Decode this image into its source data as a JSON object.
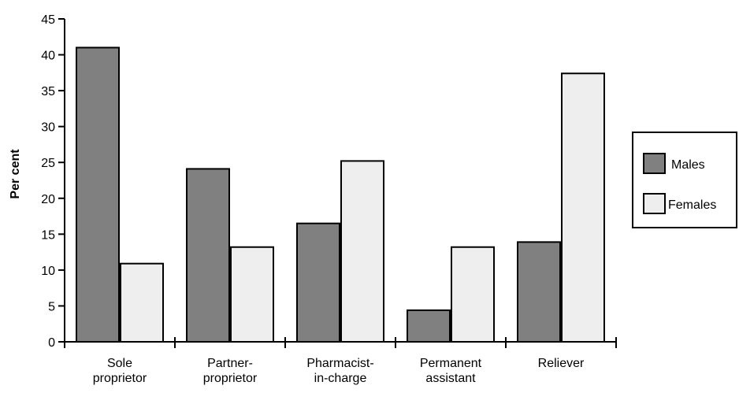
{
  "chart_data": {
    "type": "bar",
    "title": "",
    "xlabel": "",
    "ylabel": "Per cent",
    "ylim": [
      0,
      45
    ],
    "yticks": [
      0,
      5,
      10,
      15,
      20,
      25,
      30,
      35,
      40,
      45
    ],
    "categories": [
      [
        "Sole",
        "proprietor"
      ],
      [
        "Partner-",
        "proprietor"
      ],
      [
        "Pharmacist-",
        "in-charge"
      ],
      [
        "Permanent",
        "assistant"
      ],
      [
        "Reliever"
      ]
    ],
    "series": [
      {
        "name": "Males",
        "color": "#808080",
        "values": [
          41,
          24.1,
          16.5,
          4.4,
          13.9
        ]
      },
      {
        "name": "Females",
        "color": "#eeeeee",
        "values": [
          10.9,
          13.2,
          25.2,
          13.2,
          37.4
        ]
      }
    ],
    "legend_position": "right",
    "grid": false
  }
}
